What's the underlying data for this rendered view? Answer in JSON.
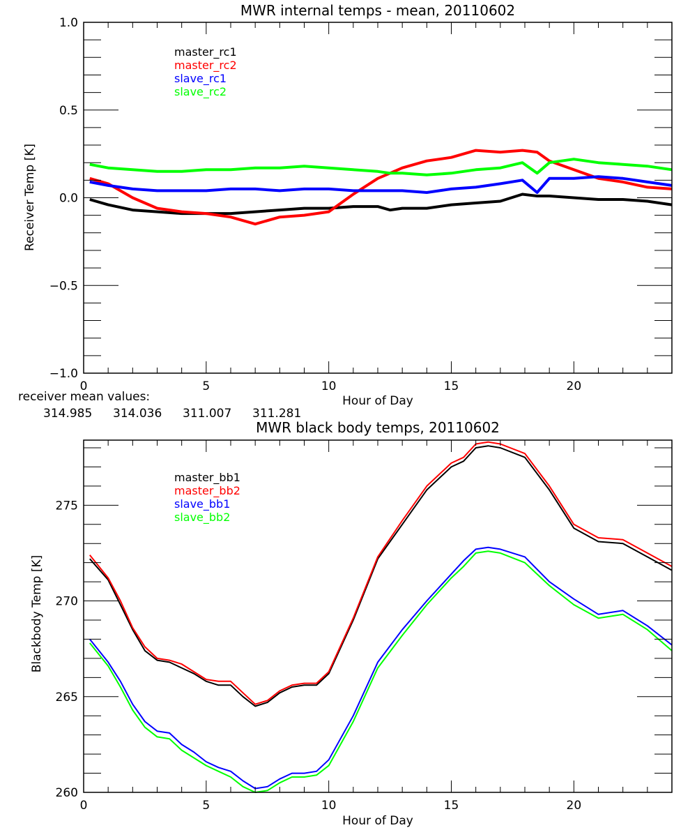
{
  "chart_data": [
    {
      "type": "line",
      "title": "MWR internal temps - mean, 20110602",
      "xlabel": "Hour of Day",
      "ylabel": "Receiver Temp [K]",
      "xlim": [
        0,
        24
      ],
      "ylim": [
        -1.0,
        1.0
      ],
      "xticks": [
        "0",
        "5",
        "10",
        "15",
        "20"
      ],
      "xtick_values": [
        0,
        5,
        10,
        15,
        20
      ],
      "yticks": [
        "-1.0",
        "-0.5",
        "0.0",
        "0.5",
        "1.0"
      ],
      "ytick_values": [
        -1.0,
        -0.5,
        0.0,
        0.5,
        1.0
      ],
      "grid": false,
      "legend_position": "top-left",
      "x": [
        0.25,
        1,
        2,
        3,
        4,
        5,
        6,
        7,
        8,
        9,
        10,
        11,
        12,
        12.5,
        13,
        14,
        15,
        16,
        17,
        17.9,
        18.5,
        19,
        20,
        21,
        22,
        23,
        24
      ],
      "series": [
        {
          "name": "master_rc1",
          "color": "#000000",
          "values": [
            -0.01,
            -0.04,
            -0.07,
            -0.08,
            -0.09,
            -0.09,
            -0.09,
            -0.08,
            -0.07,
            -0.06,
            -0.06,
            -0.05,
            -0.05,
            -0.07,
            -0.06,
            -0.06,
            -0.04,
            -0.03,
            -0.02,
            0.02,
            0.01,
            0.01,
            0.0,
            -0.01,
            -0.01,
            -0.02,
            -0.04
          ]
        },
        {
          "name": "master_rc2",
          "color": "#ff0000",
          "values": [
            0.11,
            0.08,
            0.0,
            -0.06,
            -0.08,
            -0.09,
            -0.11,
            -0.15,
            -0.11,
            -0.1,
            -0.08,
            0.02,
            0.11,
            0.14,
            0.17,
            0.21,
            0.23,
            0.27,
            0.26,
            0.27,
            0.26,
            0.21,
            0.16,
            0.11,
            0.09,
            0.06,
            0.05
          ]
        },
        {
          "name": "slave_rc1",
          "color": "#0000ff",
          "values": [
            0.09,
            0.07,
            0.05,
            0.04,
            0.04,
            0.04,
            0.05,
            0.05,
            0.04,
            0.05,
            0.05,
            0.04,
            0.04,
            0.04,
            0.04,
            0.03,
            0.05,
            0.06,
            0.08,
            0.1,
            0.03,
            0.11,
            0.11,
            0.12,
            0.11,
            0.09,
            0.07
          ]
        },
        {
          "name": "slave_rc2",
          "color": "#00ff00",
          "values": [
            0.19,
            0.17,
            0.16,
            0.15,
            0.15,
            0.16,
            0.16,
            0.17,
            0.17,
            0.18,
            0.17,
            0.16,
            0.15,
            0.14,
            0.14,
            0.13,
            0.14,
            0.16,
            0.17,
            0.2,
            0.14,
            0.2,
            0.22,
            0.2,
            0.19,
            0.18,
            0.16
          ]
        }
      ],
      "annotation": {
        "label": "receiver mean values:",
        "values": [
          {
            "text": "314.985",
            "color": "#000000"
          },
          {
            "text": "314.036",
            "color": "#ff0000"
          },
          {
            "text": "311.007",
            "color": "#0000ff"
          },
          {
            "text": "311.281",
            "color": "#00ff00"
          }
        ]
      }
    },
    {
      "type": "line",
      "title": "MWR black body temps, 20110602",
      "xlabel": "Hour of Day",
      "ylabel": "Blackbody Temp [K]",
      "xlim": [
        0,
        24
      ],
      "ylim": [
        260,
        278.4
      ],
      "xticks": [
        "0",
        "5",
        "10",
        "15",
        "20"
      ],
      "xtick_values": [
        0,
        5,
        10,
        15,
        20
      ],
      "yticks": [
        "260",
        "265",
        "270",
        "275"
      ],
      "ytick_values": [
        260,
        265,
        270,
        275
      ],
      "grid": false,
      "legend_position": "top-left",
      "x": [
        0.25,
        1,
        1.5,
        2,
        2.5,
        3,
        3.5,
        4,
        4.5,
        5,
        5.5,
        6,
        6.5,
        7,
        7.5,
        8,
        8.5,
        9,
        9.5,
        10,
        11,
        12,
        13,
        14,
        15,
        15.5,
        16,
        16.5,
        17,
        18,
        19,
        20,
        21,
        22,
        23,
        24
      ],
      "series": [
        {
          "name": "master_bb1",
          "color": "#000000",
          "values": [
            272.2,
            271.1,
            269.8,
            268.5,
            267.4,
            266.9,
            266.8,
            266.5,
            266.2,
            265.8,
            265.6,
            265.6,
            265.0,
            264.5,
            264.7,
            265.2,
            265.5,
            265.6,
            265.6,
            266.2,
            269.0,
            272.2,
            274.0,
            275.8,
            277.0,
            277.3,
            278.0,
            278.1,
            278.0,
            277.5,
            275.8,
            273.8,
            273.1,
            273.0,
            272.3,
            271.6
          ]
        },
        {
          "name": "master_bb2",
          "color": "#ff0000",
          "values": [
            272.4,
            271.2,
            270.0,
            268.6,
            267.6,
            267.0,
            266.9,
            266.7,
            266.3,
            265.9,
            265.8,
            265.8,
            265.2,
            264.6,
            264.8,
            265.3,
            265.6,
            265.7,
            265.7,
            266.3,
            269.1,
            272.3,
            274.2,
            276.0,
            277.2,
            277.5,
            278.2,
            278.3,
            278.2,
            277.7,
            276.0,
            274.0,
            273.3,
            273.2,
            272.5,
            271.8
          ]
        },
        {
          "name": "slave_bb1",
          "color": "#0000ff",
          "values": [
            268.0,
            266.8,
            265.8,
            264.6,
            263.7,
            263.2,
            263.1,
            262.5,
            262.1,
            261.6,
            261.3,
            261.1,
            260.6,
            260.2,
            260.3,
            260.7,
            261.0,
            261.0,
            261.1,
            261.7,
            264.0,
            266.8,
            268.5,
            270.0,
            271.4,
            272.1,
            272.7,
            272.8,
            272.7,
            272.3,
            271.0,
            270.1,
            269.3,
            269.5,
            268.7,
            267.7
          ]
        },
        {
          "name": "slave_bb2",
          "color": "#00ff00",
          "values": [
            267.8,
            266.6,
            265.5,
            264.3,
            263.4,
            262.9,
            262.8,
            262.2,
            261.8,
            261.4,
            261.1,
            260.8,
            260.3,
            260.0,
            260.1,
            260.5,
            260.8,
            260.8,
            260.9,
            261.4,
            263.7,
            266.5,
            268.2,
            269.8,
            271.2,
            271.8,
            272.5,
            272.6,
            272.5,
            272.0,
            270.8,
            269.8,
            269.1,
            269.3,
            268.5,
            267.4
          ]
        }
      ]
    }
  ]
}
